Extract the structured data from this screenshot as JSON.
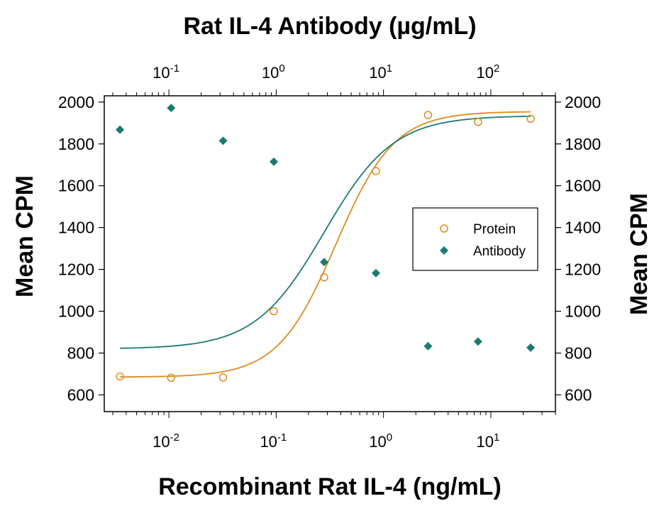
{
  "chart_data": {
    "type": "scatter",
    "title": "Rat IL-4 Antibody (µg/mL)",
    "xlabel": "Recombinant Rat IL-4 (ng/mL)",
    "ylabel_left": "Mean CPM",
    "ylabel_right": "Mean CPM",
    "x_scale": "log",
    "xlim": [
      0.0025,
      40
    ],
    "ylim": [
      520,
      2030
    ],
    "y_ticks": [
      600,
      800,
      1000,
      1200,
      1400,
      1600,
      1800,
      2000
    ],
    "y_tick_labels": [
      "600",
      "800",
      "1000",
      "1200",
      "1400",
      "1600",
      "1800",
      "2000"
    ],
    "x_major_ticks": [
      0.01,
      0.1,
      1,
      10
    ],
    "x_major_labels": [
      {
        "base": "10",
        "exp": "-2"
      },
      {
        "base": "10",
        "exp": "-1"
      },
      {
        "base": "10",
        "exp": "0"
      },
      {
        "base": "10",
        "exp": "1"
      }
    ],
    "top_axis": {
      "xlim": [
        0.025,
        400
      ],
      "major_ticks": [
        0.1,
        1,
        10,
        100
      ],
      "major_labels": [
        {
          "base": "10",
          "exp": "-1"
        },
        {
          "base": "10",
          "exp": "0"
        },
        {
          "base": "10",
          "exp": "1"
        },
        {
          "base": "10",
          "exp": "2"
        }
      ]
    },
    "legend": {
      "position": "right",
      "entries": [
        "Protein",
        "Antibody"
      ]
    },
    "series": [
      {
        "name": "Protein",
        "marker": "open-circle",
        "color": "#E08A1E",
        "axis": "bottom",
        "x": [
          0.0035,
          0.0105,
          0.032,
          0.095,
          0.28,
          0.85,
          2.6,
          7.6,
          23.5
        ],
        "y": [
          688,
          682,
          683,
          1000,
          1162,
          1670,
          1938,
          1905,
          1920
        ],
        "fit": {
          "bottom": 685,
          "top": 1955,
          "ec50": 0.36,
          "hill": 1.6
        }
      },
      {
        "name": "Antibody",
        "marker": "filled-diamond",
        "color": "#1C7A72",
        "axis": "top",
        "x": [
          0.035,
          0.105,
          0.32,
          0.95,
          2.8,
          8.5,
          26,
          76,
          235
        ],
        "y": [
          1868,
          1972,
          1815,
          1715,
          1235,
          1182,
          833,
          855,
          826
        ],
        "fit": {
          "bottom": 820,
          "top": 1935,
          "ec50": 2.8,
          "hill": 1.35
        }
      }
    ]
  }
}
